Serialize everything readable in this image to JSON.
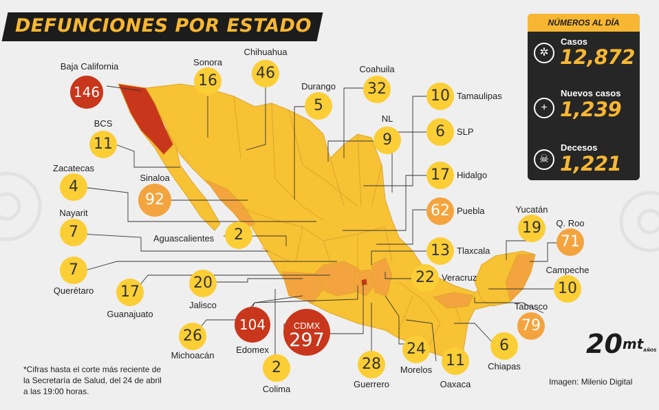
{
  "title": "DEFUNCIONES POR ESTADO",
  "colors": {
    "title_bg": "#1c1c1c",
    "accent": "#f7b733",
    "low": "#fbce36",
    "mid": "#f4a43f",
    "high": "#c8361b",
    "map_base": "#f7c234",
    "map_line": "#d9a020"
  },
  "panel": {
    "heading": "NÚMEROS AL DÍA",
    "stats": [
      {
        "label": "Casos",
        "value": "12,872",
        "icon": "virus-icon"
      },
      {
        "label": "Nuevos casos",
        "value": "1,239",
        "icon": "plus-icon"
      },
      {
        "label": "Decesos",
        "value": "1,221",
        "icon": "skull-icon"
      }
    ]
  },
  "states": [
    {
      "name": "Baja California",
      "value": "146",
      "level": "high"
    },
    {
      "name": "Sonora",
      "value": "16",
      "level": "low"
    },
    {
      "name": "Chihuahua",
      "value": "46",
      "level": "low"
    },
    {
      "name": "Durango",
      "value": "5",
      "level": "low"
    },
    {
      "name": "Coahuila",
      "value": "32",
      "level": "low"
    },
    {
      "name": "Tamaulipas",
      "value": "10",
      "level": "low"
    },
    {
      "name": "BCS",
      "value": "11",
      "level": "low"
    },
    {
      "name": "NL",
      "value": "9",
      "level": "low"
    },
    {
      "name": "SLP",
      "value": "6",
      "level": "low"
    },
    {
      "name": "Zacatecas",
      "value": "4",
      "level": "low"
    },
    {
      "name": "Sinaloa",
      "value": "92",
      "level": "mid"
    },
    {
      "name": "Hidalgo",
      "value": "17",
      "level": "low"
    },
    {
      "name": "Nayarit",
      "value": "7",
      "level": "low"
    },
    {
      "name": "Puebla",
      "value": "62",
      "level": "mid"
    },
    {
      "name": "Aguascalientes",
      "value": "2",
      "level": "low"
    },
    {
      "name": "Yucatán",
      "value": "19",
      "level": "low"
    },
    {
      "name": "Q. Roo",
      "value": "71",
      "level": "mid"
    },
    {
      "name": "Tlaxcala",
      "value": "13",
      "level": "low"
    },
    {
      "name": "Querétaro",
      "value": "7",
      "level": "low"
    },
    {
      "name": "Guanajuato",
      "value": "17",
      "level": "low"
    },
    {
      "name": "Jalisco",
      "value": "20",
      "level": "low"
    },
    {
      "name": "Veracruz",
      "value": "22",
      "level": "low"
    },
    {
      "name": "Campeche",
      "value": "10",
      "level": "low"
    },
    {
      "name": "Tabasco",
      "value": "79",
      "level": "mid"
    },
    {
      "name": "Michoacán",
      "value": "26",
      "level": "low"
    },
    {
      "name": "Edomex",
      "value": "104",
      "level": "high"
    },
    {
      "name": "CDMX",
      "value": "297",
      "level": "high"
    },
    {
      "name": "Colima",
      "value": "2",
      "level": "low"
    },
    {
      "name": "Guerrero",
      "value": "28",
      "level": "low"
    },
    {
      "name": "Morelos",
      "value": "24",
      "level": "low"
    },
    {
      "name": "Oaxaca",
      "value": "11",
      "level": "low"
    },
    {
      "name": "Chiapas",
      "value": "6",
      "level": "low"
    }
  ],
  "footnote": "*Cifras hasta el corte más reciente de la Secretaría de Salud, del 24 de abril a las 19:00 horas.",
  "credit": "Imagen: Milenio Digital",
  "logo": {
    "number": "20",
    "brand": "mt",
    "sub": "AÑOS"
  }
}
